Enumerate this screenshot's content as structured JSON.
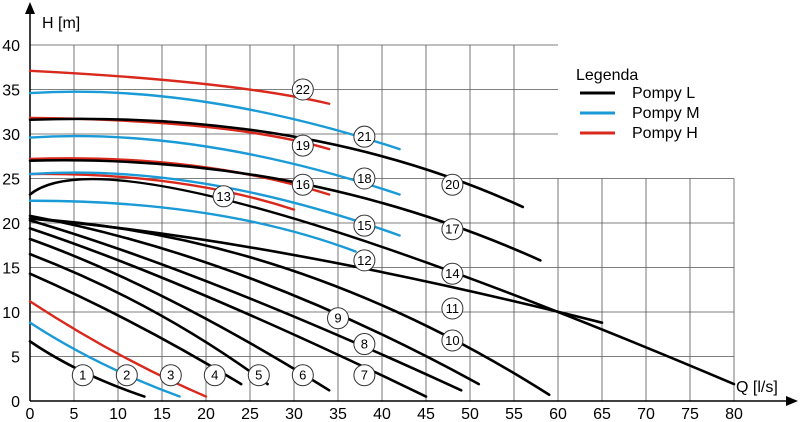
{
  "chart_data": {
    "type": "line",
    "title": "",
    "xlabel": "Q [l/s]",
    "ylabel": "H [m]",
    "xlim": [
      0,
      80
    ],
    "ylim": [
      0,
      40
    ],
    "x_ticks": [
      0,
      5,
      10,
      15,
      20,
      25,
      30,
      35,
      40,
      45,
      50,
      55,
      60,
      65,
      70,
      75,
      80
    ],
    "y_ticks": [
      0,
      5,
      10,
      15,
      20,
      25,
      30,
      35,
      40
    ],
    "grid": true,
    "legend": {
      "title": "Legenda",
      "position": "right",
      "entries": [
        {
          "label": "Pompy L",
          "color": "#000000"
        },
        {
          "label": "Pompy M",
          "color": "#1a9ad6"
        },
        {
          "label": "Pompy H",
          "color": "#d9281c"
        }
      ]
    },
    "series": [
      {
        "label": "1",
        "type": "L",
        "points": [
          [
            0,
            6.7
          ],
          [
            6,
            3.3
          ],
          [
            13,
            0.5
          ]
        ],
        "label_at": [
          6,
          2.9
        ]
      },
      {
        "label": "2",
        "type": "M",
        "points": [
          [
            0,
            8.8
          ],
          [
            8,
            4.3
          ],
          [
            17,
            0.5
          ]
        ],
        "label_at": [
          11,
          2.9
        ]
      },
      {
        "label": "3",
        "type": "H",
        "points": [
          [
            0,
            11.2
          ],
          [
            10,
            5.3
          ],
          [
            20,
            0.5
          ]
        ],
        "label_at": [
          16,
          2.9
        ]
      },
      {
        "label": "4",
        "type": "L",
        "points": [
          [
            0,
            14.3
          ],
          [
            12,
            8.6
          ],
          [
            24,
            1.9
          ]
        ],
        "label_at": [
          21,
          2.9
        ]
      },
      {
        "label": "5",
        "type": "L",
        "points": [
          [
            0,
            16.5
          ],
          [
            14,
            10.1
          ],
          [
            27,
            1.9
          ]
        ],
        "label_at": [
          26,
          2.9
        ]
      },
      {
        "label": "6",
        "type": "L",
        "points": [
          [
            0,
            18.2
          ],
          [
            16,
            11.3
          ],
          [
            34,
            1.2
          ]
        ],
        "label_at": [
          31,
          2.9
        ]
      },
      {
        "label": "7",
        "type": "L",
        "points": [
          [
            0,
            19.4
          ],
          [
            20,
            11.8
          ],
          [
            45,
            0.5
          ]
        ],
        "label_at": [
          38,
          2.9
        ]
      },
      {
        "label": "8",
        "type": "L",
        "points": [
          [
            0,
            20.3
          ],
          [
            22,
            12.7
          ],
          [
            49,
            1.2
          ]
        ],
        "label_at": [
          38,
          6.4
        ]
      },
      {
        "label": "9",
        "type": "L",
        "points": [
          [
            0,
            20.8
          ],
          [
            25,
            13.8
          ],
          [
            51,
            1.9
          ]
        ],
        "label_at": [
          35,
          9.3
        ]
      },
      {
        "label": "10",
        "type": "L",
        "points": [
          [
            0,
            20.5
          ],
          [
            30,
            14.6
          ],
          [
            59,
            0.7
          ]
        ],
        "label_at": [
          48,
          6.8
        ]
      },
      {
        "label": "11",
        "type": "L",
        "points": [
          [
            0,
            20.5
          ],
          [
            30,
            16.4
          ],
          [
            65,
            8.8
          ]
        ],
        "label_at": [
          48,
          10.4
        ]
      },
      {
        "label": "12",
        "type": "M",
        "points": [
          [
            0,
            22.5
          ],
          [
            20,
            21.1
          ],
          [
            37,
            16.8
          ]
        ],
        "label_at": [
          38,
          15.8
        ]
      },
      {
        "label": "13",
        "type": "H",
        "points": [
          [
            0,
            25.5
          ],
          [
            16,
            24.6
          ],
          [
            30,
            21.5
          ]
        ],
        "label_at": [
          22,
          23.0
        ]
      },
      {
        "label": "14",
        "type": "L",
        "points": [
          [
            0,
            23.2
          ],
          [
            25,
            21.9
          ],
          [
            80,
            1.9
          ]
        ],
        "label_at": [
          48,
          14.3
        ]
      },
      {
        "label": "15",
        "type": "M",
        "points": [
          [
            0,
            25.5
          ],
          [
            20,
            24.4
          ],
          [
            42,
            18.6
          ]
        ],
        "label_at": [
          38,
          19.7
        ]
      },
      {
        "label": "16",
        "type": "H",
        "points": [
          [
            0,
            27.2
          ],
          [
            18,
            26.5
          ],
          [
            34,
            23.2
          ]
        ],
        "label_at": [
          31,
          24.3
        ]
      },
      {
        "label": "17",
        "type": "L",
        "points": [
          [
            0,
            27.0
          ],
          [
            30,
            24.6
          ],
          [
            58,
            15.8
          ]
        ],
        "label_at": [
          48,
          19.3
        ]
      },
      {
        "label": "18",
        "type": "M",
        "points": [
          [
            0,
            29.6
          ],
          [
            20,
            28.6
          ],
          [
            42,
            23.2
          ]
        ],
        "label_at": [
          38,
          25.0
        ]
      },
      {
        "label": "19",
        "type": "H",
        "points": [
          [
            0,
            31.8
          ],
          [
            20,
            30.8
          ],
          [
            34,
            28.3
          ]
        ],
        "label_at": [
          31,
          28.7
        ]
      },
      {
        "label": "20",
        "type": "L",
        "points": [
          [
            0,
            31.6
          ],
          [
            30,
            29.7
          ],
          [
            56,
            21.8
          ]
        ],
        "label_at": [
          48,
          24.3
        ]
      },
      {
        "label": "21",
        "type": "M",
        "points": [
          [
            0,
            34.6
          ],
          [
            20,
            33.6
          ],
          [
            42,
            28.3
          ]
        ],
        "label_at": [
          38,
          29.7
        ]
      },
      {
        "label": "22",
        "type": "H",
        "points": [
          [
            0,
            37.1
          ],
          [
            20,
            35.6
          ],
          [
            34,
            33.4
          ]
        ],
        "label_at": [
          31,
          35.0
        ]
      }
    ]
  }
}
